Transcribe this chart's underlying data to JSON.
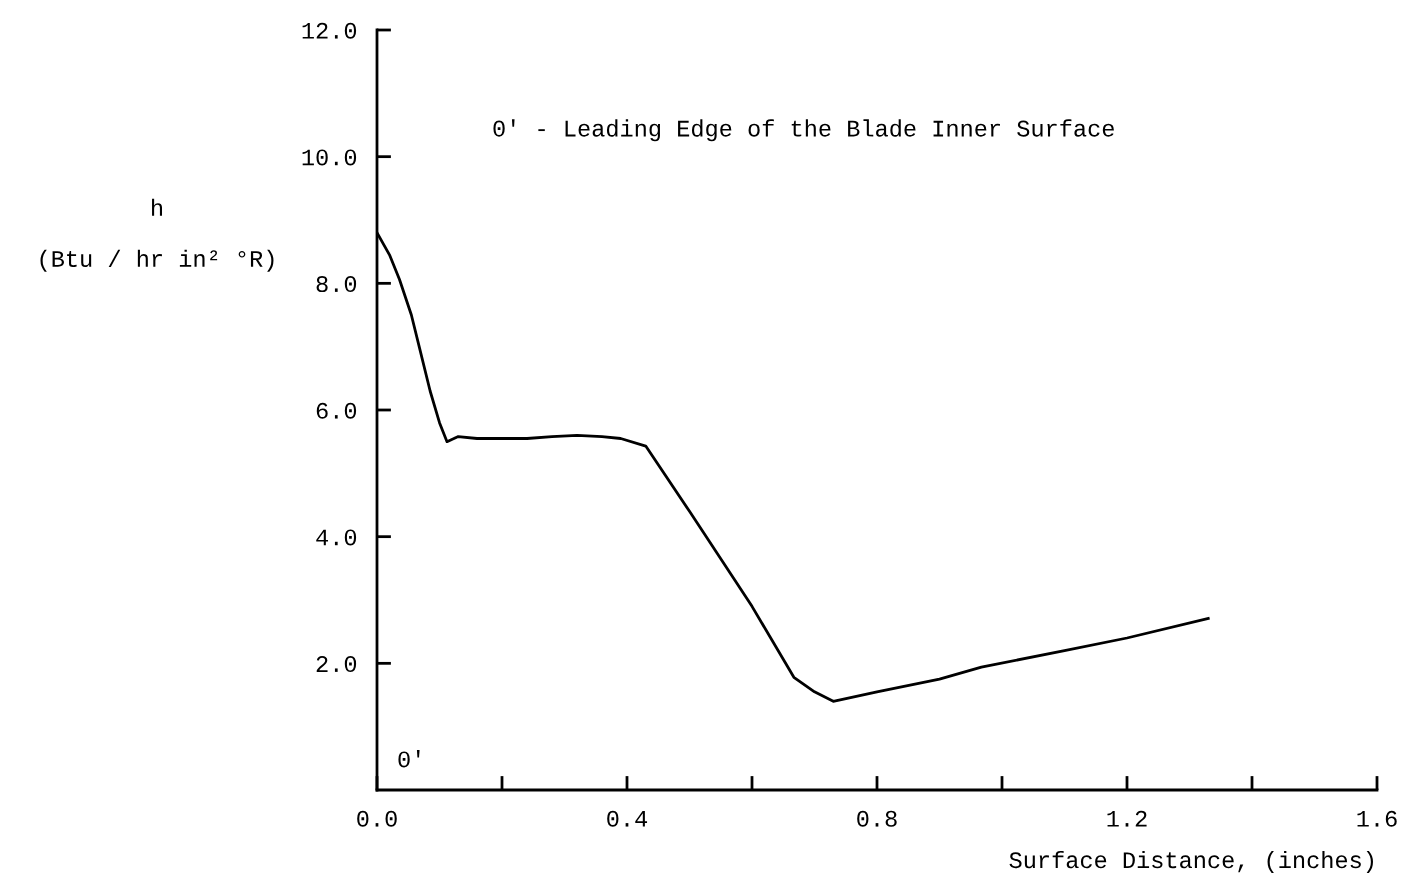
{
  "chart_data": {
    "type": "line",
    "xlabel": "Surface Distance, (inches)",
    "ylabel": "h\n\n(Btu / hr in² °R)",
    "x": [
      0.0,
      0.02,
      0.036,
      0.055,
      0.068,
      0.085,
      0.1,
      0.112,
      0.13,
      0.16,
      0.2,
      0.24,
      0.28,
      0.32,
      0.36,
      0.39,
      0.43,
      0.5,
      0.6,
      0.667,
      0.7,
      0.73,
      0.8,
      0.9,
      0.967,
      1.1,
      1.2,
      1.33
    ],
    "series": [
      {
        "color": "#000000",
        "values": [
          8.8,
          8.45,
          8.06,
          7.5,
          6.98,
          6.3,
          5.8,
          5.5,
          5.58,
          5.55,
          5.55,
          5.55,
          5.58,
          5.6,
          5.58,
          5.55,
          5.43,
          4.4,
          2.9,
          1.78,
          1.55,
          1.4,
          1.55,
          1.75,
          1.94,
          2.2,
          2.4,
          2.71
        ]
      }
    ],
    "xlim": [
      0.0,
      1.6
    ],
    "ylim": [
      0.0,
      12.0
    ],
    "xticks": [
      {
        "value": 0.0,
        "label": "0.0"
      },
      {
        "value": 0.2,
        "label": null
      },
      {
        "value": 0.4,
        "label": "0.4"
      },
      {
        "value": 0.6,
        "label": null
      },
      {
        "value": 0.8,
        "label": "0.8"
      },
      {
        "value": 1.0,
        "label": null
      },
      {
        "value": 1.2,
        "label": "1.2"
      },
      {
        "value": 1.4,
        "label": null
      },
      {
        "value": 1.6,
        "label": "1.6"
      }
    ],
    "yticks": [
      {
        "value": 2.0,
        "label": "2.0"
      },
      {
        "value": 4.0,
        "label": "4.0"
      },
      {
        "value": 6.0,
        "label": "6.0"
      },
      {
        "value": 8.0,
        "label": "8.0"
      },
      {
        "value": 10.0,
        "label": "10.0"
      },
      {
        "value": 12.0,
        "label": "12.0"
      }
    ],
    "annotations": [
      "0′ - Leading Edge of the Blade Inner Surface",
      "0′"
    ],
    "grid": false,
    "marker": "none",
    "line_style": "solid"
  }
}
